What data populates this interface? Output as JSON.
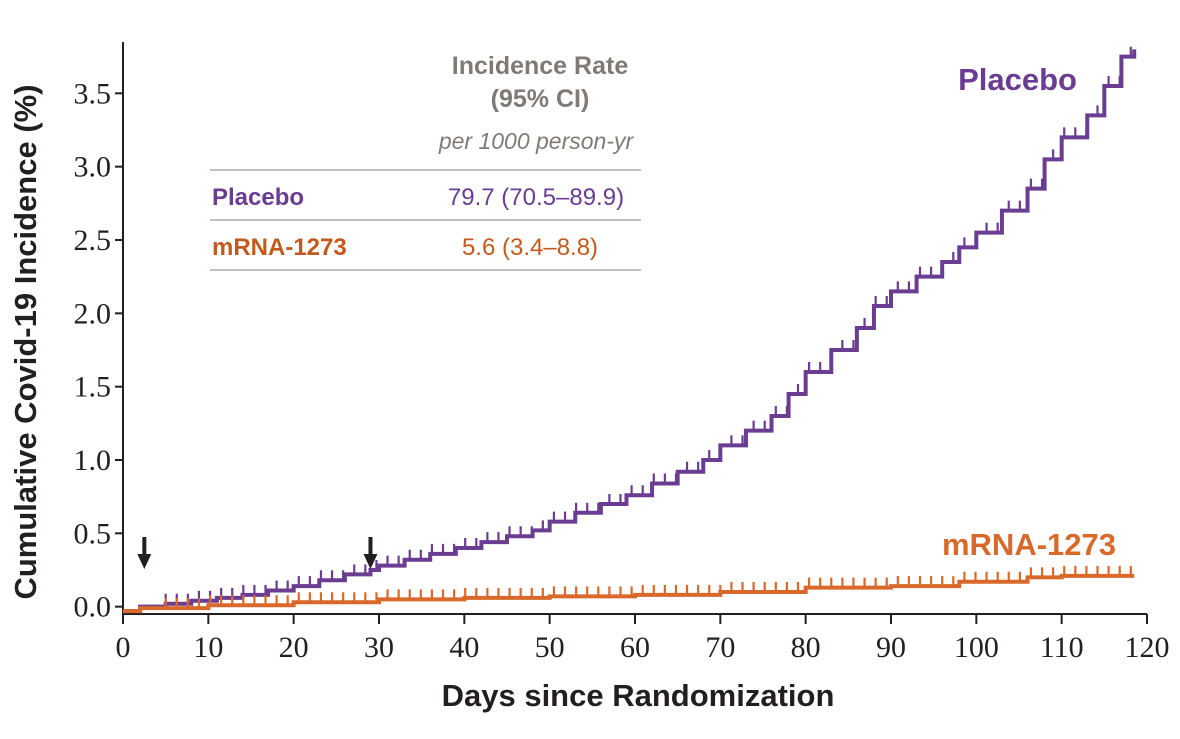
{
  "chart_data": {
    "type": "line",
    "xlabel": "Days since Randomization",
    "ylabel": "Cumulative Covid-19 Incidence (%)",
    "xlim": [
      0,
      120
    ],
    "ylim": [
      -0.05,
      3.85
    ],
    "xticks": [
      0,
      10,
      20,
      30,
      40,
      50,
      60,
      70,
      80,
      90,
      100,
      110,
      120
    ],
    "xtick_labels": [
      "0",
      "10",
      "20",
      "30",
      "40",
      "50",
      "60",
      "70",
      "80",
      "90",
      "100",
      "110",
      "120"
    ],
    "yticks": [
      0.0,
      0.5,
      1.0,
      1.5,
      2.0,
      2.5,
      3.0,
      3.5
    ],
    "ytick_labels": [
      "0.0",
      "0.5",
      "1.0",
      "1.5",
      "2.0",
      "2.5",
      "3.0",
      "3.5"
    ],
    "grid": false,
    "dose_arrows_days": [
      2.5,
      29
    ],
    "series": [
      {
        "name": "Placebo",
        "color": "#6a3c92",
        "step_x": [
          0,
          2,
          5,
          8,
          11,
          14,
          17,
          20,
          23,
          26,
          29,
          30,
          33,
          36,
          39,
          42,
          45,
          48,
          50,
          53,
          56,
          59,
          62,
          65,
          68,
          70,
          73,
          76,
          78,
          80,
          83,
          86,
          88,
          90,
          93,
          96,
          98,
          100,
          103,
          106,
          108,
          110,
          113,
          115,
          117,
          118.5
        ],
        "step_y": [
          -0.03,
          0.0,
          0.02,
          0.04,
          0.06,
          0.08,
          0.11,
          0.14,
          0.18,
          0.22,
          0.25,
          0.28,
          0.32,
          0.36,
          0.4,
          0.44,
          0.48,
          0.52,
          0.58,
          0.64,
          0.7,
          0.76,
          0.84,
          0.92,
          1.0,
          1.1,
          1.2,
          1.3,
          1.45,
          1.6,
          1.75,
          1.9,
          2.05,
          2.15,
          2.25,
          2.35,
          2.45,
          2.55,
          2.7,
          2.85,
          3.05,
          3.2,
          3.35,
          3.55,
          3.75,
          3.8
        ],
        "annotation": "Placebo"
      },
      {
        "name": "mRNA-1273",
        "color": "#d9692b",
        "step_x": [
          0,
          2,
          10,
          20,
          30,
          40,
          50,
          60,
          70,
          80,
          90,
          98,
          106,
          110,
          118.5
        ],
        "step_y": [
          -0.03,
          -0.01,
          0.01,
          0.03,
          0.05,
          0.06,
          0.07,
          0.08,
          0.1,
          0.13,
          0.14,
          0.17,
          0.2,
          0.21,
          0.21
        ],
        "annotation": "mRNA-1273"
      }
    ]
  },
  "table": {
    "header_line1": "Incidence Rate",
    "header_line2": "(95% CI)",
    "subheader": "per 1000 person-yr",
    "rows": [
      {
        "name": "Placebo",
        "value": "79.7 (70.5–89.9)",
        "color": "#6a3c92"
      },
      {
        "name": "mRNA-1273",
        "value": "5.6 (3.4–8.8)",
        "color": "#c35a1c"
      }
    ]
  },
  "colors": {
    "axis": "#231f20",
    "table_rule": "#b2aca7",
    "arrow": "#231f20"
  }
}
